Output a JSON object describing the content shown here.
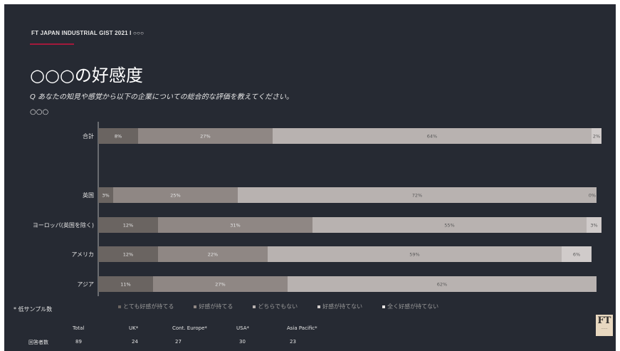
{
  "header": "FT JAPAN INDUSTRIAL GIST 2021 I ○○○",
  "title": "○○○の好感度",
  "question": "Q あなたの知見や感覚から以下の企業についての総合的な評価を教えてください。",
  "subtitle": "○○○",
  "note": "* 低サンプル数",
  "colors": [
    "#6a6461",
    "#8f8784",
    "#b8b2b0",
    "#d0cbca",
    "#e6e3e2"
  ],
  "chart_data": {
    "type": "bar",
    "orientation": "horizontal",
    "stacked": true,
    "categories": [
      "合計",
      "",
      "英国",
      "ヨーロッパ(英国を除く)",
      "アメリカ",
      "アジア"
    ],
    "series": [
      {
        "name": "とても好感が持てる",
        "values": [
          8,
          null,
          3,
          12,
          12,
          11
        ],
        "labels": [
          "8%",
          "",
          "3%",
          "12%",
          "12%",
          "11%"
        ]
      },
      {
        "name": "好感が持てる",
        "values": [
          27,
          null,
          25,
          31,
          22,
          27
        ],
        "labels": [
          "27%",
          "",
          "25%",
          "31%",
          "22%",
          "27%"
        ]
      },
      {
        "name": "どちらでもない",
        "values": [
          64,
          null,
          72,
          55,
          59,
          62
        ],
        "labels": [
          "64%",
          "",
          "72%",
          "55%",
          "59%",
          "62%"
        ]
      },
      {
        "name": "好感が持てない",
        "values": [
          2,
          null,
          0,
          3,
          6,
          0
        ],
        "labels": [
          "2%",
          "",
          "0%",
          "3%",
          "6%",
          ""
        ]
      },
      {
        "name": "全く好感が持てない",
        "values": [
          0,
          null,
          0,
          0,
          0,
          0
        ],
        "labels": [
          "",
          "",
          "",
          "",
          "",
          ""
        ]
      }
    ],
    "legend_position": "bottom"
  },
  "counts": {
    "row_label": "回答者数",
    "headers": [
      "Total",
      "UK*",
      "Cont. Europe*",
      "USA*",
      "Asia Pacific*"
    ],
    "values": [
      "89",
      "24",
      "27",
      "30",
      "23"
    ]
  },
  "logo_text": "FT"
}
